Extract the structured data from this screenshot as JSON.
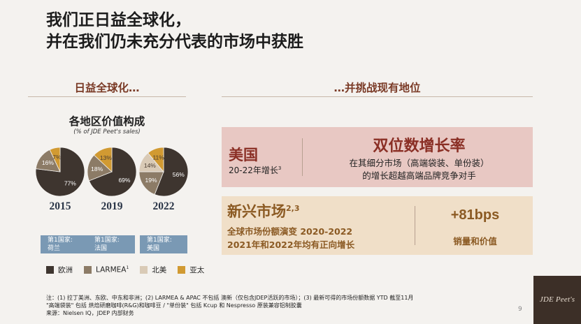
{
  "title": {
    "line1": "我们正日益全球化，",
    "line2": "并在我们仍未充分代表的市场中获胜"
  },
  "left_section": {
    "heading": "日益全球化…",
    "chart_title": "各地区价值构成",
    "chart_subtitle": "(% of JDE Peet's sales)"
  },
  "right_section": {
    "heading": "…并挑战现有地位"
  },
  "colors": {
    "europe": "#3e352f",
    "larmea": "#8c7b66",
    "north_america": "#d9cab6",
    "apac": "#d19a32",
    "panel_us": "#e8c8c3",
    "panel_em": "#f0dfc8",
    "country_box": "#7a99b4",
    "accent_red": "#8a2f25",
    "accent_brown": "#8b5a23",
    "logo_bg": "#3c2f27"
  },
  "chart_data": [
    {
      "type": "pie",
      "year": "2015",
      "slices": [
        {
          "name": "欧洲",
          "value": 77
        },
        {
          "name": "LARMEA",
          "value": 16
        },
        {
          "name": "北美",
          "value": 0
        },
        {
          "name": "亚太",
          "value": 7
        }
      ],
      "labels": [
        "77%",
        "16%",
        "7%"
      ]
    },
    {
      "type": "pie",
      "year": "2019",
      "slices": [
        {
          "name": "欧洲",
          "value": 69
        },
        {
          "name": "LARMEA",
          "value": 18
        },
        {
          "name": "北美",
          "value": 0
        },
        {
          "name": "亚太",
          "value": 13
        }
      ],
      "labels": [
        "69%",
        "18%",
        "13%"
      ]
    },
    {
      "type": "pie",
      "year": "2022",
      "slices": [
        {
          "name": "欧洲",
          "value": 56
        },
        {
          "name": "LARMEA",
          "value": 19
        },
        {
          "name": "北美",
          "value": 14
        },
        {
          "name": "亚太",
          "value": 11
        }
      ],
      "labels": [
        "56%",
        "19%",
        "14%",
        "11%"
      ]
    }
  ],
  "country_boxes": [
    {
      "line1": "第1国家:",
      "line2": "荷兰"
    },
    {
      "line1": "第1国家:",
      "line2": "法国"
    },
    {
      "line1": "第1国家:",
      "line2": "美国"
    }
  ],
  "legend": {
    "europe": "欧洲",
    "larmea": "LARMEA",
    "larmea_sup": "1",
    "north_america": "北美",
    "apac": "亚太"
  },
  "us_panel": {
    "title": "美国",
    "subtitle": "20-22年增长",
    "subtitle_sup": "3",
    "headline": "双位数增长率",
    "desc1": "在其细分市场（高端袋装、单份装）",
    "desc2": "的增长超越高端品牌竞争对手"
  },
  "em_panel": {
    "title": "新兴市场",
    "title_sup": "2,3",
    "line1": "全球市场份额演变 2020-2022",
    "line2": "2021年和2022年均有正向增长",
    "metric": "+81bps",
    "metric_label": "销量和价值"
  },
  "footnotes": {
    "line1": "注：(1) 拉丁美洲、东欧、中东和非洲；(2) LARMEA & APAC 不包括 澳新（仅包含JDEP活跃的市场）；(3) 最新可得的市场份额数据 YTD 截至11月",
    "line2": "\"高端袋装\" 包括 烘焙研磨咖啡(R&G)和咖啡豆 / \"单份装\" 包括 Kcup 和 Nespresso 原装兼容铝制胶囊",
    "line3": "来源：Nielsen IQ，JDEP 内部财务"
  },
  "page_number": "9",
  "logo": {
    "text": "JDE Peet's"
  }
}
